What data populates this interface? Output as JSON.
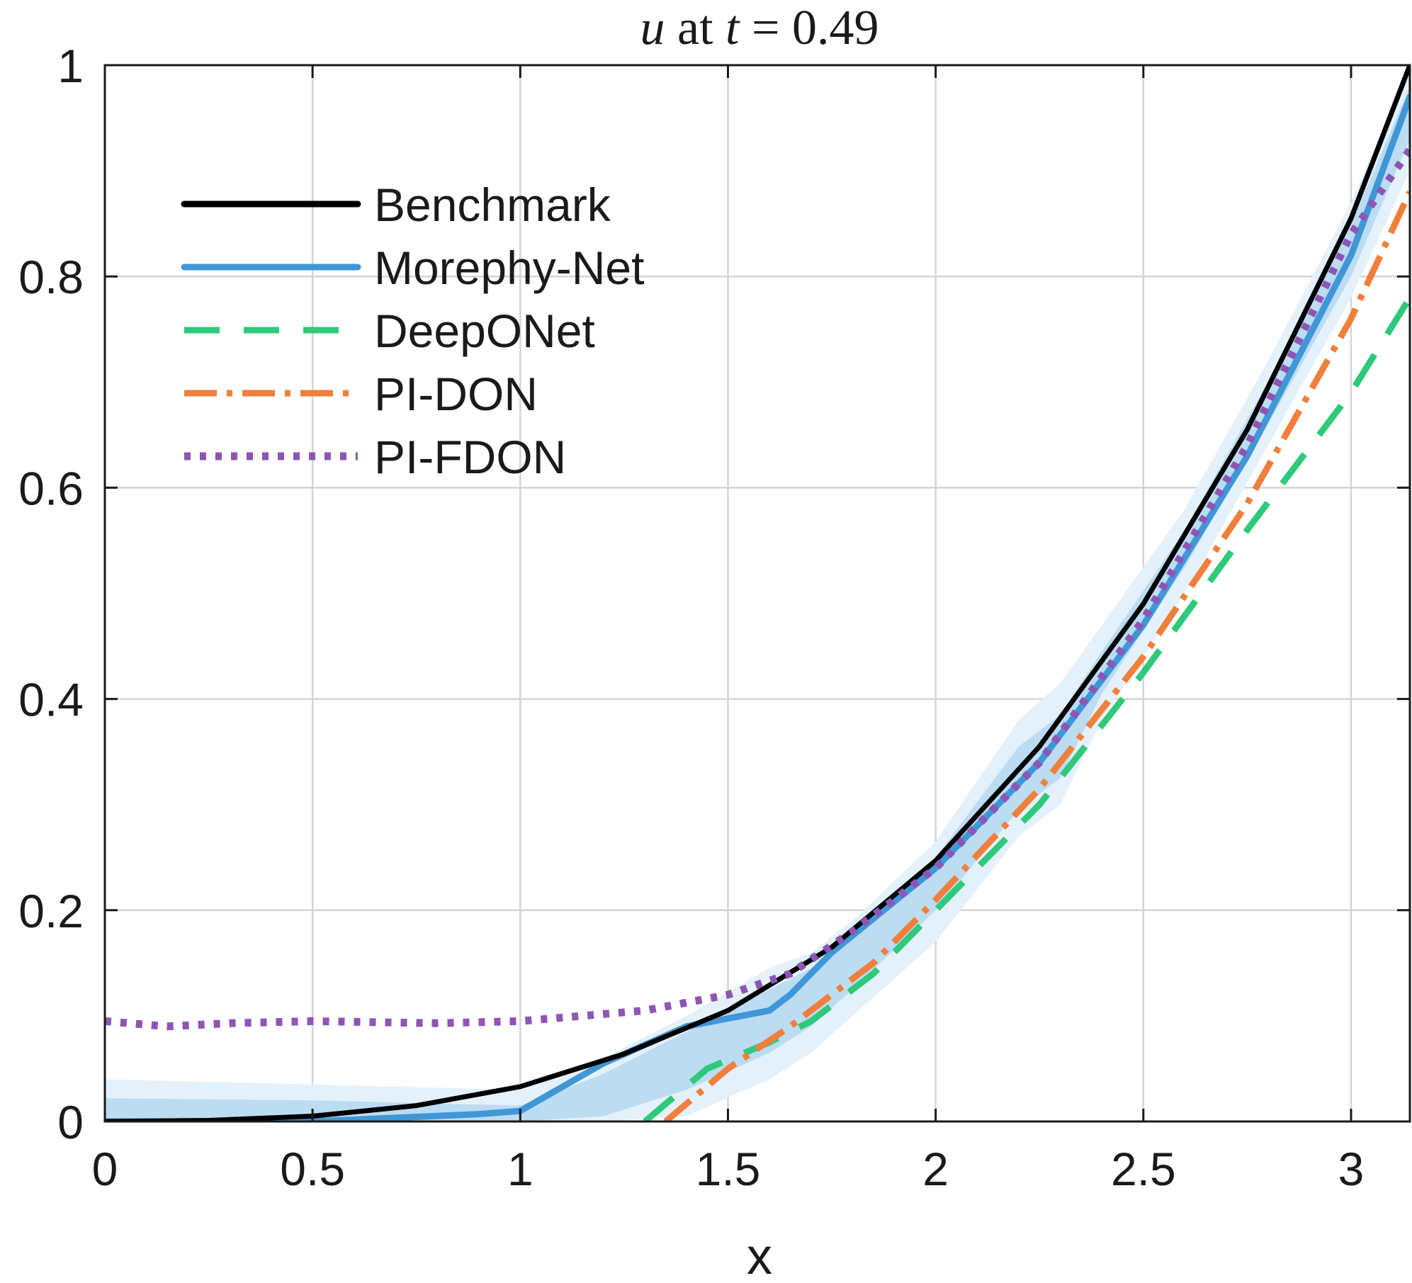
{
  "chart_data": {
    "type": "line",
    "title_parts": {
      "var": "u",
      "mid": " at ",
      "tvar": "t",
      "rest": " = 0.49"
    },
    "title": "u at t = 0.49",
    "xlabel": "x",
    "ylabel": "",
    "xlim": [
      0,
      3.1416
    ],
    "ylim": [
      0,
      1
    ],
    "grid": true,
    "legend_position": "top-left",
    "xticks": [
      0,
      0.5,
      1,
      1.5,
      2,
      2.5,
      3
    ],
    "xtick_labels": [
      "0",
      "0.5",
      "1",
      "1.5",
      "2",
      "2.5",
      "3"
    ],
    "yticks": [
      0,
      0.2,
      0.4,
      0.6,
      0.8,
      1
    ],
    "ytick_labels": [
      "0",
      "0.2",
      "0.4",
      "0.6",
      "0.8",
      "1"
    ],
    "bands": [
      {
        "name": "Morephy-Net outer band",
        "color": "#e4f1fb",
        "x": [
          0,
          0.5,
          1.0,
          1.2,
          1.4,
          1.6,
          1.7,
          1.8,
          2.0,
          2.2,
          2.3,
          2.4,
          2.6,
          2.8,
          3.0,
          3.1416
        ],
        "upper": [
          0.04,
          0.035,
          0.03,
          0.06,
          0.1,
          0.145,
          0.16,
          0.19,
          0.265,
          0.38,
          0.415,
          0.47,
          0.58,
          0.72,
          0.87,
          1.0
        ],
        "lower": [
          0.0,
          0.0,
          0.0,
          0.0,
          0.005,
          0.04,
          0.065,
          0.1,
          0.17,
          0.27,
          0.3,
          0.38,
          0.5,
          0.64,
          0.78,
          0.9
        ]
      },
      {
        "name": "Morephy-Net inner band",
        "color": "#bcdcf2",
        "x": [
          0,
          0.5,
          1.0,
          1.2,
          1.4,
          1.6,
          1.7,
          1.8,
          2.0,
          2.2,
          2.3,
          2.4,
          2.6,
          2.8,
          3.0,
          3.1416
        ],
        "upper": [
          0.022,
          0.02,
          0.015,
          0.045,
          0.085,
          0.125,
          0.145,
          0.175,
          0.25,
          0.355,
          0.385,
          0.445,
          0.56,
          0.7,
          0.85,
          0.98
        ],
        "lower": [
          0.0,
          0.0,
          0.0,
          0.005,
          0.03,
          0.065,
          0.09,
          0.125,
          0.2,
          0.295,
          0.325,
          0.405,
          0.525,
          0.66,
          0.8,
          0.93
        ]
      }
    ],
    "series": [
      {
        "name": "Benchmark",
        "color": "#000000",
        "style": "solid",
        "x": [
          0,
          0.25,
          0.5,
          0.75,
          1.0,
          1.25,
          1.5,
          1.75,
          2.0,
          2.25,
          2.5,
          2.75,
          3.0,
          3.1416
        ],
        "y": [
          0,
          0.001,
          0.005,
          0.015,
          0.033,
          0.064,
          0.105,
          0.165,
          0.247,
          0.355,
          0.49,
          0.655,
          0.855,
          1.0
        ]
      },
      {
        "name": "Morephy-Net",
        "color": "#3f97d8",
        "style": "solid",
        "x": [
          0,
          0.5,
          0.9,
          1.0,
          1.2,
          1.4,
          1.6,
          1.65,
          1.75,
          2.0,
          2.25,
          2.5,
          2.75,
          3.0,
          3.1416
        ],
        "y": [
          0,
          0,
          0.007,
          0.01,
          0.055,
          0.09,
          0.105,
          0.12,
          0.16,
          0.24,
          0.34,
          0.47,
          0.63,
          0.82,
          0.97
        ]
      },
      {
        "name": "DeepONet",
        "color": "#2ec97a",
        "style": "dash",
        "x": [
          1.3,
          1.45,
          1.6,
          1.7,
          1.85,
          2.0,
          2.25,
          2.5,
          2.75,
          3.0,
          3.1416
        ],
        "y": [
          0,
          0.05,
          0.075,
          0.095,
          0.14,
          0.2,
          0.3,
          0.425,
          0.56,
          0.69,
          0.78
        ]
      },
      {
        "name": "PI-DON",
        "color": "#f07f3b",
        "style": "dashdot",
        "x": [
          1.35,
          1.5,
          1.65,
          1.85,
          2.0,
          2.25,
          2.5,
          2.75,
          3.0,
          3.1416
        ],
        "y": [
          0,
          0.05,
          0.09,
          0.15,
          0.21,
          0.315,
          0.44,
          0.585,
          0.76,
          0.88
        ]
      },
      {
        "name": "PI-FDON",
        "color": "#8e55b5",
        "style": "dot",
        "x": [
          0,
          0.15,
          0.3,
          0.5,
          0.8,
          1.0,
          1.3,
          1.5,
          1.65,
          1.8,
          2.0,
          2.25,
          2.5,
          2.75,
          3.0,
          3.1416
        ],
        "y": [
          0.095,
          0.09,
          0.093,
          0.095,
          0.093,
          0.095,
          0.105,
          0.12,
          0.14,
          0.18,
          0.24,
          0.34,
          0.475,
          0.64,
          0.84,
          0.92
        ]
      }
    ]
  }
}
